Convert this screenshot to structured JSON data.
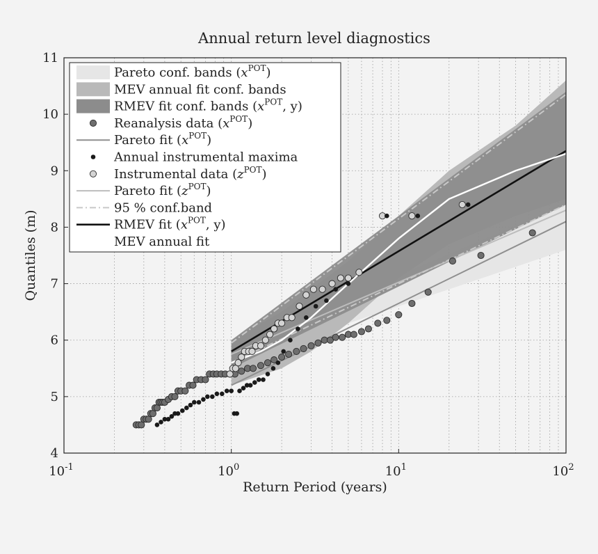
{
  "chart_data": {
    "type": "scatter",
    "title": "Annual return level diagnostics",
    "xlabel": "Return Period (years)",
    "ylabel": "Quantiles (m)",
    "xscale": "log",
    "xlim": [
      0.1,
      100
    ],
    "ylim": [
      4,
      11
    ],
    "grid": true,
    "legend_position": "top-left",
    "x_ticks": [
      {
        "value": 0.1,
        "base": "10",
        "exp": "-1"
      },
      {
        "value": 1,
        "base": "10",
        "exp": "0"
      },
      {
        "value": 10,
        "base": "10",
        "exp": "1"
      },
      {
        "value": 100,
        "base": "10",
        "exp": "2"
      }
    ],
    "y_ticks": [
      4,
      5,
      6,
      7,
      8,
      9,
      10,
      11
    ],
    "legend": [
      {
        "id": "pareto_band",
        "kind": "patch",
        "color": "#e6e6e6",
        "text": "Pareto conf. bands (",
        "sup": "POT",
        "tail": ")"
      },
      {
        "id": "mev_band",
        "kind": "patch",
        "color": "#b9b9b9",
        "text": "MEV annual fit conf. bands",
        "sup": "",
        "tail": ""
      },
      {
        "id": "rmev_band",
        "kind": "patch",
        "color": "#8c8c8c",
        "text": "RMEV fit conf. bands (",
        "sup": "POT",
        "tail": ", y)"
      },
      {
        "id": "reanalysis",
        "kind": "marker",
        "color": "#6e6e6e",
        "text": "Reanalysis data (",
        "sup": "POT",
        "tail": ")"
      },
      {
        "id": "pareto_x",
        "kind": "line",
        "color": "#8f8f8f",
        "text": "Pareto fit (",
        "sup": "POT",
        "tail": ")"
      },
      {
        "id": "annual_max",
        "kind": "dot",
        "color": "#1a1a1a",
        "text": "Annual instrumental maxima",
        "sup": "",
        "tail": ""
      },
      {
        "id": "instrumental",
        "kind": "marker",
        "color": "#d4d4d4",
        "text": "Instrumental data (",
        "sup": "POT",
        "tail": ")"
      },
      {
        "id": "pareto_z",
        "kind": "line",
        "color": "#bdbdbd",
        "text": "Pareto fit (",
        "sup": "POT",
        "tail": ")"
      },
      {
        "id": "conf95",
        "kind": "dashdot",
        "color": "#c8c8c8",
        "text": "95 % conf.band",
        "sup": "",
        "tail": ""
      },
      {
        "id": "rmev_fit",
        "kind": "line",
        "color": "#111111",
        "text": "RMEV fit (",
        "sup": "POT",
        "tail": ", y)"
      },
      {
        "id": "mev_fit",
        "kind": "line",
        "color": "#ffffff",
        "text": "MEV annual fit",
        "sup": "",
        "tail": ""
      }
    ],
    "legend_vars": {
      "pareto_band": "x",
      "rmev_band": "x",
      "reanalysis": "x",
      "pareto_x": "x",
      "instrumental": "z",
      "pareto_z": "z",
      "rmev_fit": "x"
    },
    "bands": {
      "pareto": {
        "x": [
          1,
          100
        ],
        "low": [
          5.6,
          7.6
        ],
        "high": [
          5.9,
          8.4
        ]
      },
      "mev": {
        "x": [
          1,
          2,
          3,
          5,
          10,
          20,
          50,
          100
        ],
        "low": [
          5.2,
          5.5,
          5.8,
          6.3,
          7.1,
          7.7,
          8.2,
          8.5
        ],
        "high": [
          6.0,
          6.5,
          6.9,
          7.4,
          8.2,
          9.0,
          9.8,
          10.6
        ]
      },
      "rmev": {
        "x": [
          1,
          100
        ],
        "low": [
          5.5,
          8.4
        ],
        "high": [
          6.0,
          10.4
        ]
      }
    },
    "series": [
      {
        "id": "pareto_x",
        "type": "line",
        "x": [
          1,
          100
        ],
        "y": [
          5.2,
          8.1
        ],
        "color": "#8f8f8f"
      },
      {
        "id": "pareto_z",
        "type": "line",
        "x": [
          1,
          100
        ],
        "y": [
          5.75,
          8.3
        ],
        "color": "#bdbdbd"
      },
      {
        "id": "conf95_upper",
        "type": "dashdot",
        "x": [
          1,
          100
        ],
        "y": [
          5.95,
          10.35
        ],
        "color": "#c8c8c8"
      },
      {
        "id": "conf95_lower",
        "type": "dashdot",
        "x": [
          1,
          100
        ],
        "y": [
          5.6,
          8.4
        ],
        "color": "#c8c8c8"
      },
      {
        "id": "rmev_fit",
        "type": "line",
        "x": [
          1,
          100
        ],
        "y": [
          5.8,
          9.35
        ],
        "color": "#111111"
      },
      {
        "id": "mev_fit",
        "type": "line",
        "x": [
          1,
          1.5,
          2,
          3,
          5,
          10,
          20,
          50,
          100
        ],
        "y": [
          5.6,
          5.8,
          6.0,
          6.4,
          7.0,
          7.8,
          8.5,
          9.0,
          9.3
        ],
        "color": "#ffffff"
      },
      {
        "id": "reanalysis",
        "type": "scatter",
        "x": [
          0.27,
          0.28,
          0.29,
          0.3,
          0.31,
          0.32,
          0.33,
          0.34,
          0.35,
          0.36,
          0.37,
          0.38,
          0.39,
          0.4,
          0.42,
          0.44,
          0.46,
          0.48,
          0.5,
          0.53,
          0.56,
          0.59,
          0.62,
          0.66,
          0.7,
          0.74,
          0.78,
          0.82,
          0.87,
          0.92,
          0.98,
          1.05,
          1.15,
          1.25,
          1.35,
          1.5,
          1.65,
          1.8,
          2.0,
          2.2,
          2.45,
          2.7,
          3.0,
          3.3,
          3.6,
          3.9,
          4.2,
          4.6,
          5.0,
          5.4,
          6.0,
          6.6,
          7.5,
          8.5,
          10.0,
          12.0,
          15.0,
          21.0,
          31.0,
          63.0
        ],
        "y": [
          4.5,
          4.5,
          4.5,
          4.6,
          4.6,
          4.6,
          4.7,
          4.7,
          4.8,
          4.8,
          4.9,
          4.9,
          4.9,
          4.9,
          4.95,
          5.0,
          5.0,
          5.1,
          5.1,
          5.1,
          5.2,
          5.2,
          5.3,
          5.3,
          5.3,
          5.4,
          5.4,
          5.4,
          5.4,
          5.4,
          5.4,
          5.4,
          5.45,
          5.5,
          5.5,
          5.55,
          5.6,
          5.65,
          5.7,
          5.75,
          5.8,
          5.85,
          5.9,
          5.95,
          6.0,
          6.0,
          6.05,
          6.05,
          6.1,
          6.1,
          6.15,
          6.2,
          6.3,
          6.35,
          6.45,
          6.65,
          6.85,
          7.4,
          7.5,
          7.9
        ],
        "color": "#6e6e6e"
      },
      {
        "id": "instrumental",
        "type": "scatter",
        "x": [
          0.98,
          1.02,
          1.06,
          1.1,
          1.15,
          1.2,
          1.27,
          1.33,
          1.4,
          1.5,
          1.6,
          1.7,
          1.8,
          1.9,
          2.0,
          2.15,
          2.3,
          2.55,
          2.8,
          3.1,
          3.5,
          4.0,
          4.5,
          5.0,
          5.8,
          8.0,
          12.0,
          24.0
        ],
        "y": [
          5.4,
          5.5,
          5.5,
          5.6,
          5.7,
          5.8,
          5.8,
          5.8,
          5.9,
          5.9,
          6.0,
          6.1,
          6.2,
          6.3,
          6.3,
          6.4,
          6.4,
          6.6,
          6.8,
          6.9,
          6.9,
          7.0,
          7.1,
          7.1,
          7.2,
          8.2,
          8.2,
          8.4
        ],
        "color": "#d4d4d4"
      },
      {
        "id": "annual_max",
        "type": "scatter",
        "x": [
          0.36,
          0.38,
          0.4,
          0.42,
          0.44,
          0.46,
          0.48,
          0.51,
          0.54,
          0.57,
          0.6,
          0.64,
          0.68,
          0.72,
          0.77,
          0.82,
          0.88,
          0.94,
          1.0,
          1.04,
          1.08,
          1.12,
          1.18,
          1.24,
          1.3,
          1.38,
          1.46,
          1.55,
          1.65,
          1.78,
          1.9,
          2.05,
          2.25,
          2.5,
          2.8,
          3.2,
          3.7,
          4.2,
          5.0,
          8.5,
          13.0,
          26.0
        ],
        "y": [
          4.5,
          4.55,
          4.6,
          4.6,
          4.65,
          4.7,
          4.7,
          4.75,
          4.8,
          4.85,
          4.9,
          4.9,
          4.95,
          5.0,
          5.0,
          5.05,
          5.05,
          5.1,
          5.1,
          4.7,
          4.7,
          5.1,
          5.15,
          5.2,
          5.2,
          5.25,
          5.3,
          5.3,
          5.4,
          5.5,
          5.6,
          5.8,
          6.0,
          6.2,
          6.4,
          6.6,
          6.7,
          6.9,
          7.0,
          8.2,
          8.2,
          8.4
        ],
        "color": "#1a1a1a"
      }
    ]
  }
}
